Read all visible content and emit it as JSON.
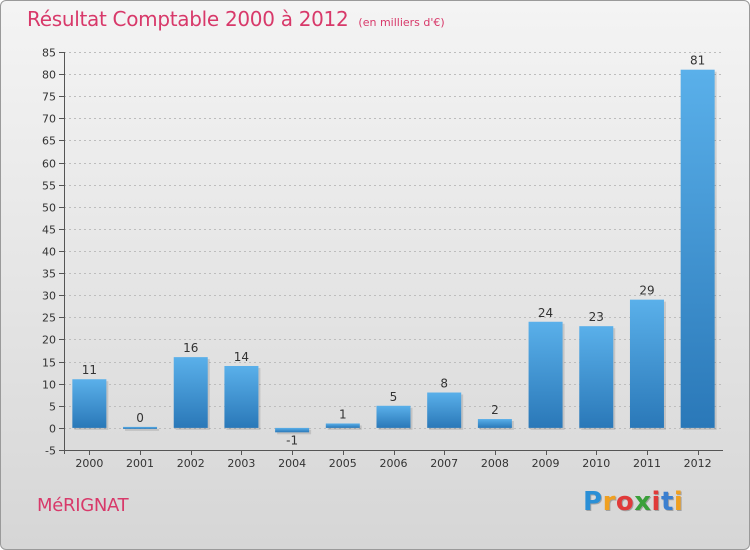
{
  "title": "Résultat Comptable 2000 à 2012",
  "subtitle": "(en milliers d'€)",
  "city": "MéRIGNAT",
  "logo": {
    "letters": [
      "P",
      "r",
      "o",
      "x",
      "i",
      "t",
      "i"
    ],
    "colors": [
      "#2a8fd6",
      "#f0a020",
      "#e03a3a",
      "#3aa03a",
      "#e03a3a",
      "#3a7fd0",
      "#f0a020"
    ]
  },
  "colors": {
    "bar_top": "#5ab0ea",
    "bar_bottom": "#2a78b8",
    "title": "#d8396a"
  },
  "chart_data": {
    "type": "bar",
    "title": "Résultat Comptable 2000 à 2012",
    "subtitle": "(en milliers d'€)",
    "categories": [
      "2000",
      "2001",
      "2002",
      "2003",
      "2004",
      "2005",
      "2006",
      "2007",
      "2008",
      "2009",
      "2010",
      "2011",
      "2012"
    ],
    "values": [
      11,
      0,
      16,
      14,
      -1,
      1,
      5,
      8,
      2,
      24,
      23,
      29,
      81
    ],
    "ylim": [
      -5,
      85
    ],
    "yticks": [
      -5,
      0,
      5,
      10,
      15,
      20,
      25,
      30,
      35,
      40,
      45,
      50,
      55,
      60,
      65,
      70,
      75,
      80,
      85
    ],
    "grid": true,
    "xlabel": "",
    "ylabel": ""
  }
}
